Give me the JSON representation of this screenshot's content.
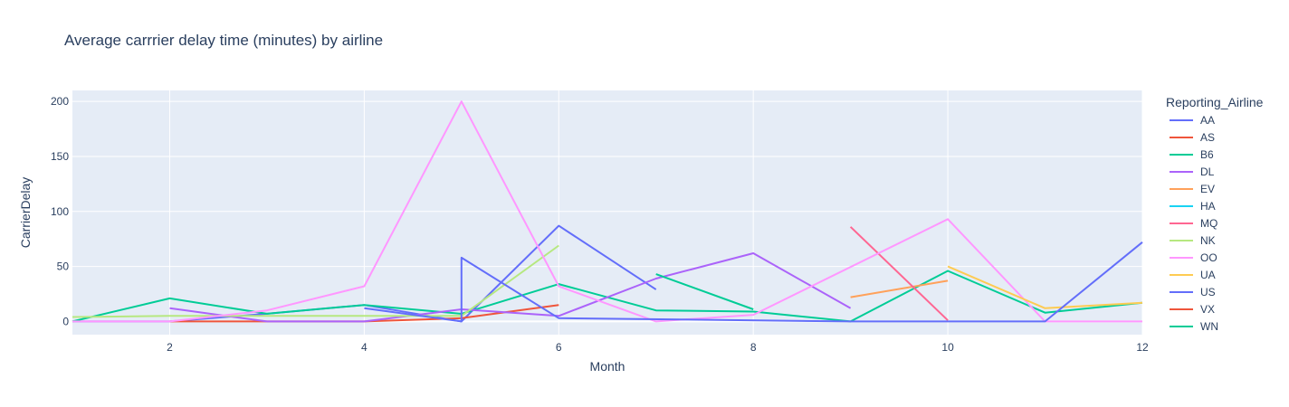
{
  "chart_data": {
    "type": "line",
    "title": "Average carrrier delay time (minutes) by airline",
    "xlabel": "Month",
    "ylabel": "CarrierDelay",
    "xlim": [
      1,
      12
    ],
    "ylim": [
      -12,
      210
    ],
    "xticks": [
      2,
      4,
      6,
      8,
      10,
      12
    ],
    "yticks": [
      0,
      50,
      100,
      150,
      200
    ],
    "grid": true,
    "legend_title": "Reporting_Airline",
    "legend_position": "right",
    "series": [
      {
        "name": "AA",
        "color": "#636efa",
        "points": [
          [
            1,
            0
          ],
          [
            2,
            0
          ],
          [
            3,
            7
          ],
          [
            4,
            15
          ],
          [
            5,
            0
          ],
          [
            6,
            87
          ],
          [
            7,
            29
          ]
        ]
      },
      {
        "name": "AS",
        "color": "#EF553B",
        "points": [
          [
            2,
            0
          ],
          [
            3,
            0
          ],
          [
            4,
            0
          ],
          [
            5,
            3
          ],
          [
            6,
            15
          ]
        ]
      },
      {
        "name": "B6",
        "color": "#00cc96",
        "points": [
          [
            1,
            0
          ],
          [
            2,
            21
          ],
          [
            3,
            7
          ],
          [
            4,
            15
          ],
          [
            5,
            7
          ],
          [
            6,
            34
          ],
          [
            7,
            10
          ],
          [
            8,
            9
          ],
          [
            9,
            0
          ],
          [
            10,
            46
          ],
          [
            11,
            8
          ],
          [
            12,
            17
          ]
        ]
      },
      {
        "name": "DL",
        "color": "#ab63fa",
        "points": [
          [
            2,
            12
          ],
          [
            3,
            0
          ],
          [
            4,
            0
          ],
          [
            5,
            11
          ],
          [
            6,
            5
          ],
          [
            7,
            39
          ],
          [
            8,
            62
          ],
          [
            9,
            12
          ]
        ]
      },
      {
        "name": "EV",
        "color": "#FFA15A",
        "points": [
          [
            9,
            22
          ],
          [
            10,
            37
          ]
        ]
      },
      {
        "name": "HA",
        "color": "#19d3f3",
        "points": []
      },
      {
        "name": "MQ",
        "color": "#FF6692",
        "points": [
          [
            9,
            86
          ],
          [
            10,
            1
          ]
        ]
      },
      {
        "name": "NK",
        "color": "#B6E880",
        "points": [
          [
            1,
            4
          ],
          [
            2,
            5
          ],
          [
            3,
            5
          ],
          [
            4,
            5
          ],
          [
            5,
            5
          ],
          [
            6,
            69
          ]
        ]
      },
      {
        "name": "OO",
        "color": "#FF97FF",
        "points": [
          [
            1,
            0
          ],
          [
            2,
            0
          ],
          [
            3,
            10
          ],
          [
            4,
            32
          ],
          [
            5,
            200
          ],
          [
            6,
            32
          ],
          [
            7,
            0
          ],
          [
            8,
            6
          ],
          [
            10,
            93
          ],
          [
            11,
            0
          ],
          [
            12,
            0
          ]
        ]
      },
      {
        "name": "UA",
        "color": "#FECB52",
        "points": [
          [
            10,
            50
          ],
          [
            11,
            12
          ],
          [
            12,
            17
          ]
        ]
      },
      {
        "name": "US",
        "color": "#636efa",
        "points": [
          [
            4,
            12
          ],
          [
            5,
            0
          ],
          [
            5,
            58
          ],
          [
            6,
            3
          ],
          [
            9,
            0
          ],
          [
            10,
            0
          ],
          [
            11,
            0
          ],
          [
            12,
            72
          ]
        ]
      },
      {
        "name": "VX",
        "color": "#EF553B",
        "points": []
      },
      {
        "name": "WN",
        "color": "#00cc96",
        "points": [
          [
            7,
            43
          ],
          [
            8,
            11
          ]
        ]
      }
    ]
  }
}
